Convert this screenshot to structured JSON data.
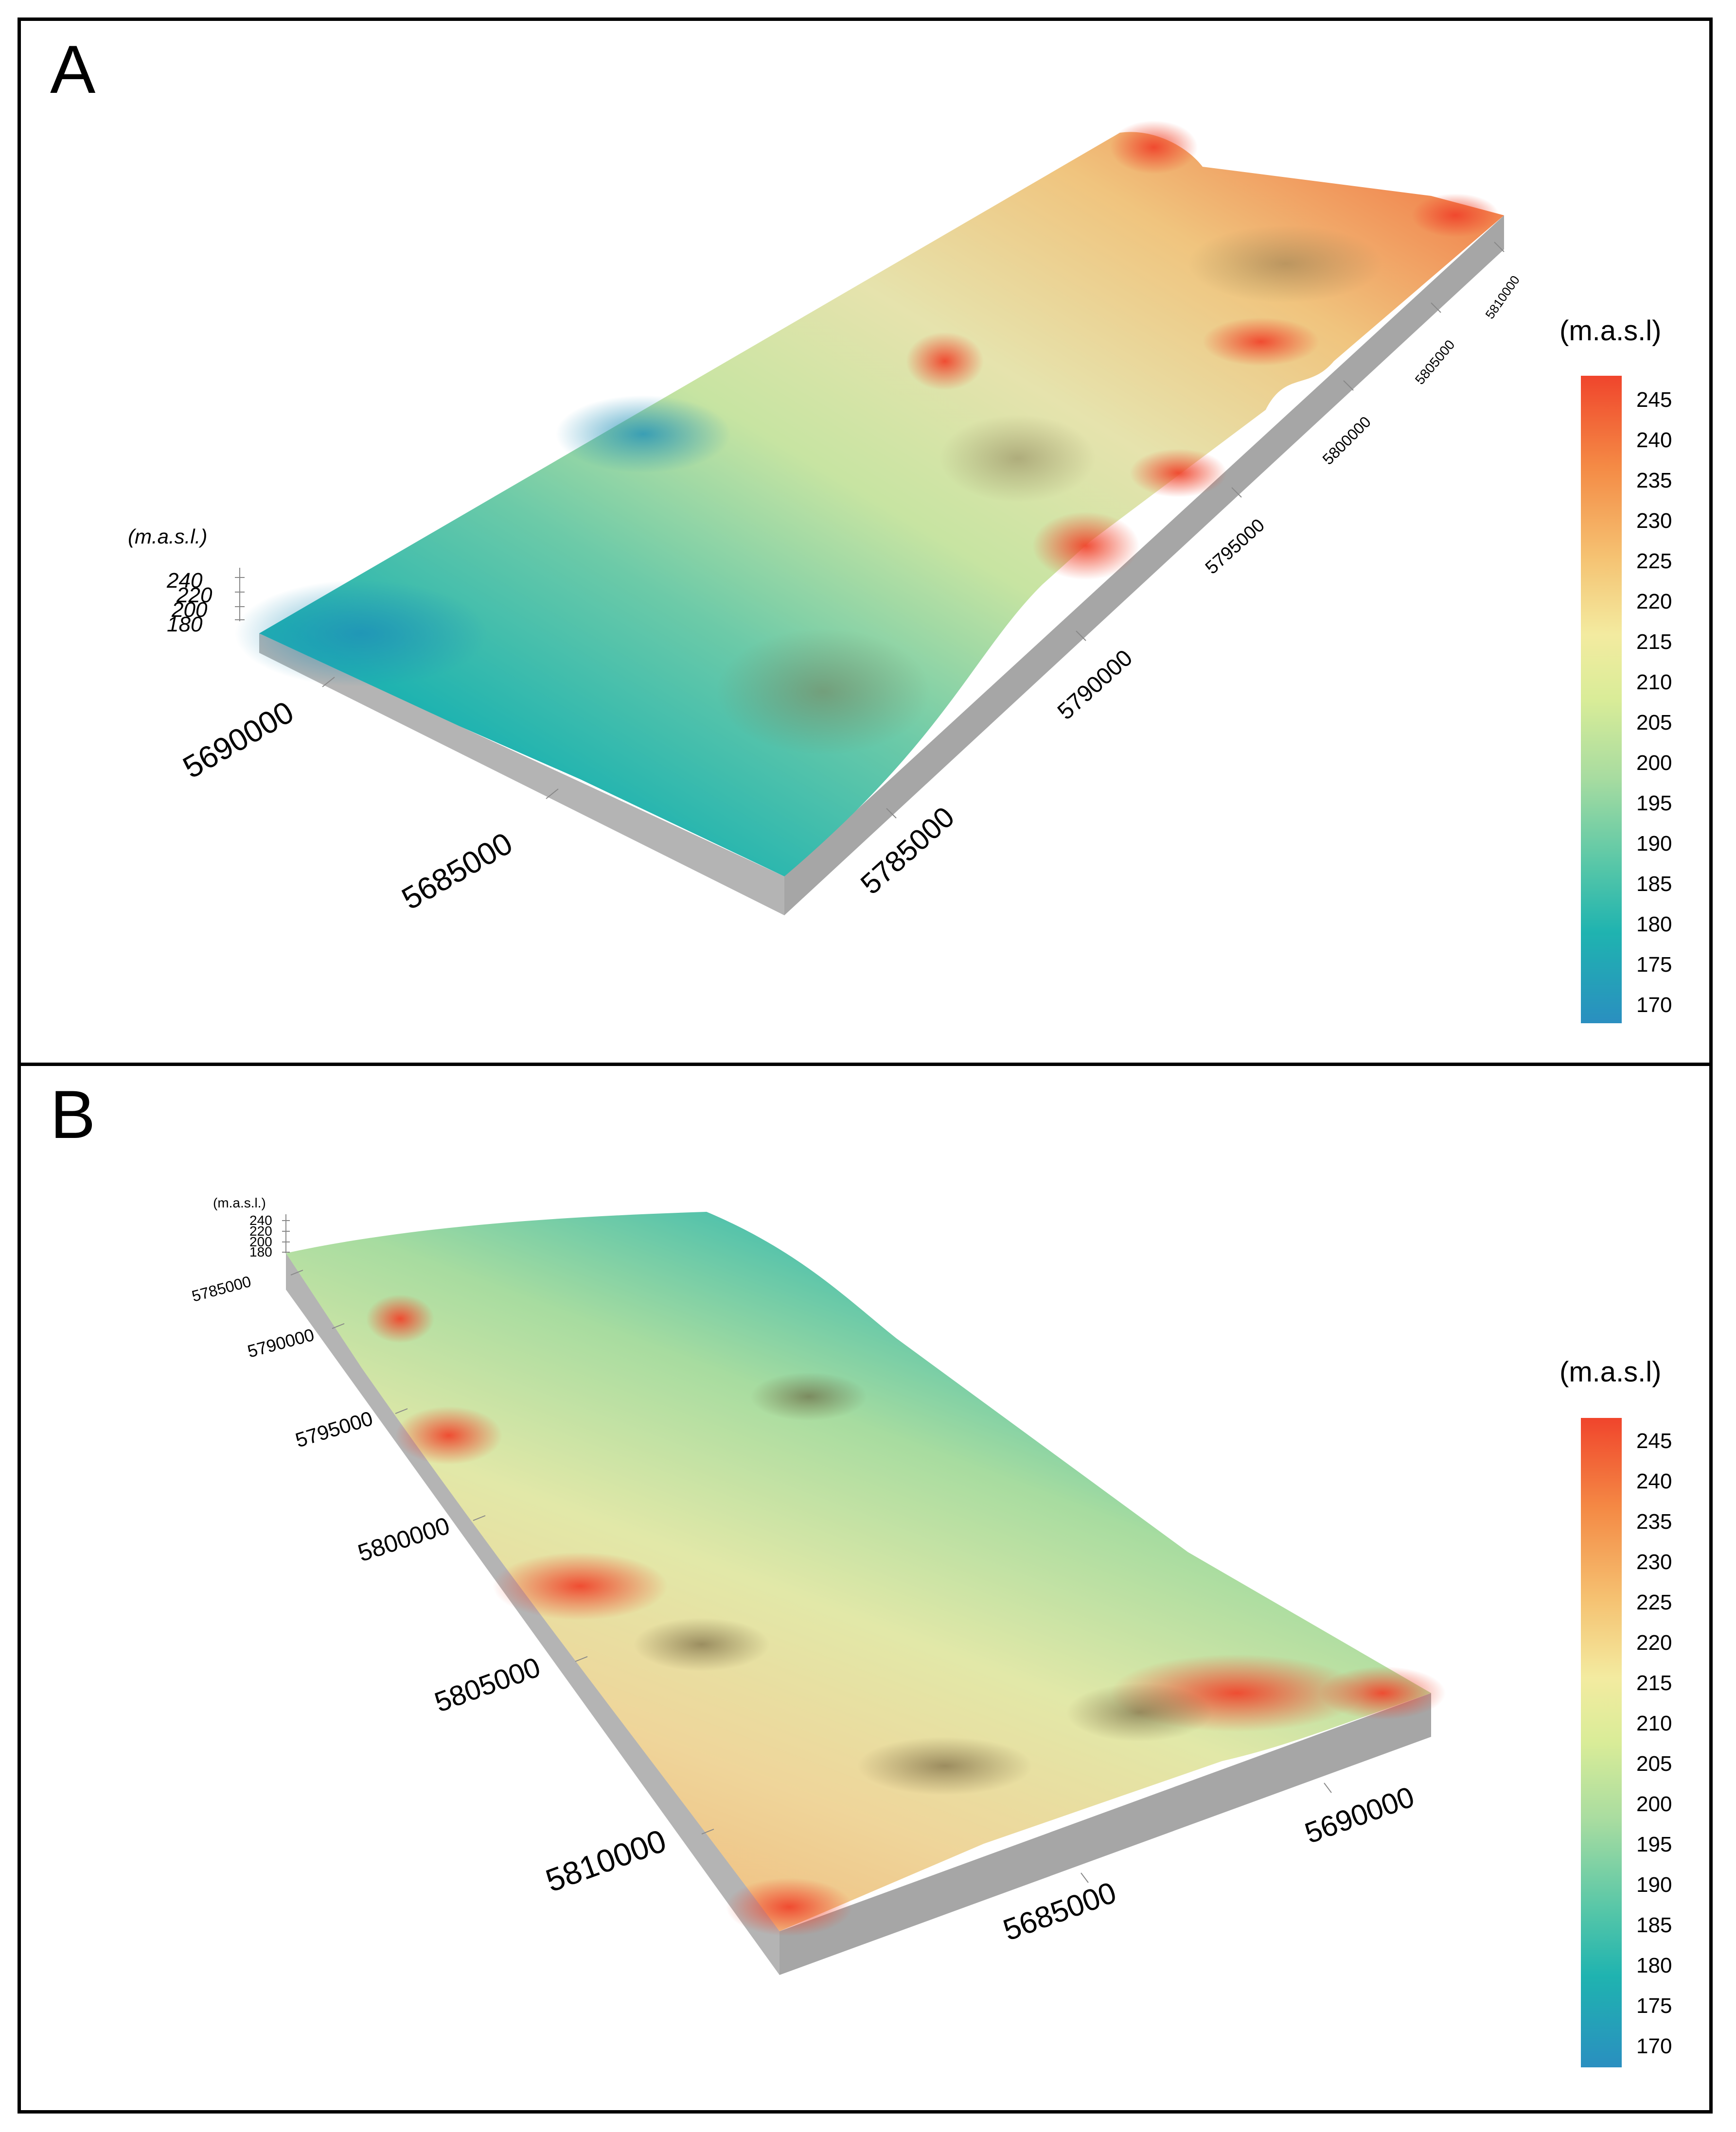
{
  "panels": [
    {
      "letter": "A",
      "legend": {
        "title": "(m.a.s.l)",
        "ticks": [
          "245",
          "240",
          "235",
          "230",
          "225",
          "220",
          "215",
          "210",
          "205",
          "200",
          "195",
          "190",
          "185",
          "180",
          "175",
          "170"
        ]
      },
      "z_axis": {
        "label": "(m.a.s.l.)",
        "ticks": [
          "240",
          "220",
          "200",
          "180"
        ]
      },
      "easting_ticks": [
        "5690000",
        "5685000"
      ],
      "northing_ticks": [
        "5785000",
        "5790000",
        "5795000",
        "5800000",
        "5805000",
        "5810000"
      ]
    },
    {
      "letter": "B",
      "legend": {
        "title": "(m.a.s.l)",
        "ticks": [
          "245",
          "240",
          "235",
          "230",
          "225",
          "220",
          "215",
          "210",
          "205",
          "200",
          "195",
          "190",
          "185",
          "180",
          "175",
          "170"
        ]
      },
      "z_axis": {
        "label": "(m.a.s.l.)",
        "ticks": [
          "240",
          "220",
          "200",
          "180"
        ]
      },
      "northing_ticks": [
        "5785000",
        "5790000",
        "5795000",
        "5800000",
        "5805000",
        "5810000"
      ],
      "easting_ticks": [
        "5685000",
        "5690000"
      ]
    }
  ],
  "colors": {
    "high": "#f0452c",
    "mid_high": "#f5c272",
    "mid": "#f3eba0",
    "mid_low": "#a8dca0",
    "low": "#2a8fc0",
    "block_side": "#b4b4b4"
  }
}
